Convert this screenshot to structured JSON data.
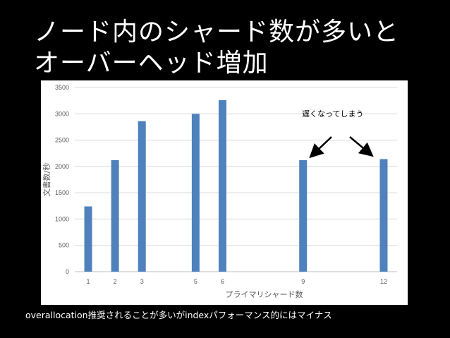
{
  "slide": {
    "title_lines": [
      "ノード内のシャード数が多いと",
      "オーバーヘッド増加"
    ],
    "footer": "overallocation推奨されることが多いがindexパフォーマンス的にはマイナス"
  },
  "colors": {
    "bar": "#4f81bd",
    "gridline": "#d9d9d9",
    "background": "#000000",
    "panel": "#ffffff"
  },
  "chart_data": {
    "type": "bar",
    "x": [
      1,
      2,
      3,
      5,
      6,
      9,
      12
    ],
    "x_ticks": [
      1,
      2,
      3,
      5,
      6,
      9,
      12
    ],
    "values": [
      1240,
      2120,
      2860,
      3000,
      3260,
      2120,
      2140
    ],
    "xlabel": "プライマリシャード数",
    "ylabel": "文書数/秒",
    "ylim": [
      0,
      3500
    ],
    "y_ticks": [
      0,
      500,
      1000,
      1500,
      2000,
      2500,
      3000,
      3500
    ],
    "grid": true,
    "annotation": {
      "text": "遅くなってしまう",
      "targets": [
        9,
        12
      ]
    }
  }
}
